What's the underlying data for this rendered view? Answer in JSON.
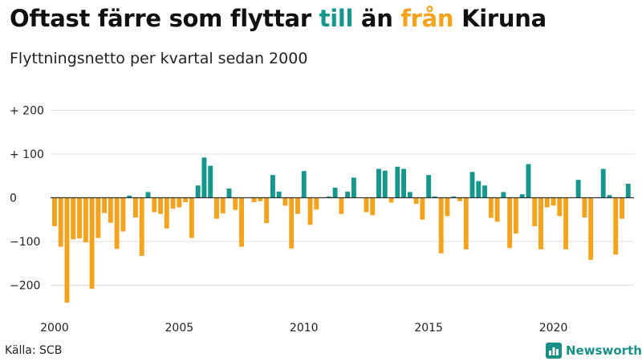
{
  "title": {
    "part1": "Oftast färre som flyttar ",
    "highlight_pos": "till",
    "part2": " än ",
    "highlight_neg": "från",
    "part3": " Kiruna"
  },
  "subtitle": "Flyttningsnetto per kvartal sedan 2000",
  "source": "Källa: SCB",
  "brand": {
    "name": "Newsworthy",
    "icon": "bar-chart-logo-icon"
  },
  "colors": {
    "positive": "#16978b",
    "negative": "#f5a21c",
    "grid": "#dddddd",
    "axis": "#333333",
    "brand": "#1a8f86"
  },
  "chart_data": {
    "type": "bar",
    "title": "Oftast färre som flyttar till än från Kiruna",
    "subtitle": "Flyttningsnetto per kvartal sedan 2000",
    "xlabel": "",
    "ylabel": "",
    "ylim": [
      -250,
      200
    ],
    "yticks": [
      -200,
      -100,
      0,
      100,
      200
    ],
    "ytick_labels": [
      "−200",
      "−100",
      "0",
      "+ 100",
      "+ 200"
    ],
    "xticks": [
      2000,
      2005,
      2010,
      2015,
      2020
    ],
    "xtick_labels": [
      "2000",
      "2005",
      "2010",
      "2015",
      "2020"
    ],
    "grid": true,
    "start_year": 2000,
    "periods_per_year": 4,
    "values": [
      -65,
      -112,
      -240,
      -95,
      -93,
      -102,
      -208,
      -92,
      -35,
      -57,
      -117,
      -77,
      5,
      -45,
      -133,
      13,
      -33,
      -37,
      -70,
      -25,
      -22,
      -10,
      -92,
      28,
      92,
      73,
      -48,
      -36,
      21,
      -28,
      -112,
      0,
      -10,
      -8,
      -58,
      52,
      14,
      -18,
      -116,
      -37,
      61,
      -62,
      -27,
      0,
      3,
      23,
      -37,
      14,
      46,
      0,
      -33,
      -40,
      66,
      62,
      -11,
      71,
      66,
      13,
      -14,
      -50,
      52,
      3,
      -127,
      -42,
      3,
      -8,
      -118,
      59,
      38,
      28,
      -46,
      -55,
      13,
      -115,
      -82,
      8,
      77,
      -65,
      -118,
      -22,
      -18,
      -42,
      -118,
      0,
      41,
      -45,
      -142,
      0,
      66,
      6,
      -130,
      -48,
      32
    ]
  }
}
